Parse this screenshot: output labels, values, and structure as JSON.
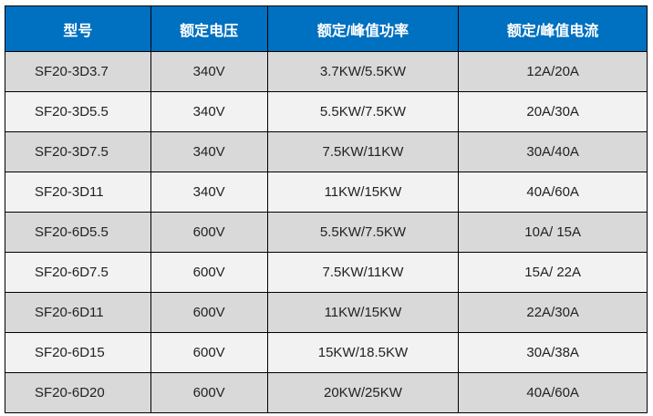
{
  "table": {
    "headers": [
      "型号",
      "额定电压",
      "额定/峰值功率",
      "额定/峰值电流"
    ],
    "rows": [
      [
        "SF20-3D3.7",
        "340V",
        "3.7KW/5.5KW",
        "12A/20A"
      ],
      [
        "SF20-3D5.5",
        "340V",
        "5.5KW/7.5KW",
        "20A/30A"
      ],
      [
        "SF20-3D7.5",
        "340V",
        "7.5KW/11KW",
        "30A/40A"
      ],
      [
        "SF20-3D11",
        "340V",
        "11KW/15KW",
        "40A/60A"
      ],
      [
        "SF20-6D5.5",
        "600V",
        "5.5KW/7.5KW",
        "10A/ 15A"
      ],
      [
        "SF20-6D7.5",
        "600V",
        "7.5KW/11KW",
        "15A/ 22A"
      ],
      [
        "SF20-6D11",
        "600V",
        "11KW/15KW",
        "22A/30A"
      ],
      [
        "SF20-6D15",
        "600V",
        "15KW/18.5KW",
        "30A/38A"
      ],
      [
        "SF20-6D20",
        "600V",
        "20KW/25KW",
        "40A/60A"
      ]
    ]
  },
  "colors": {
    "header_bg": "#0070c0",
    "row_dark": "#d9d9d9",
    "row_light": "#f2f2f2"
  }
}
